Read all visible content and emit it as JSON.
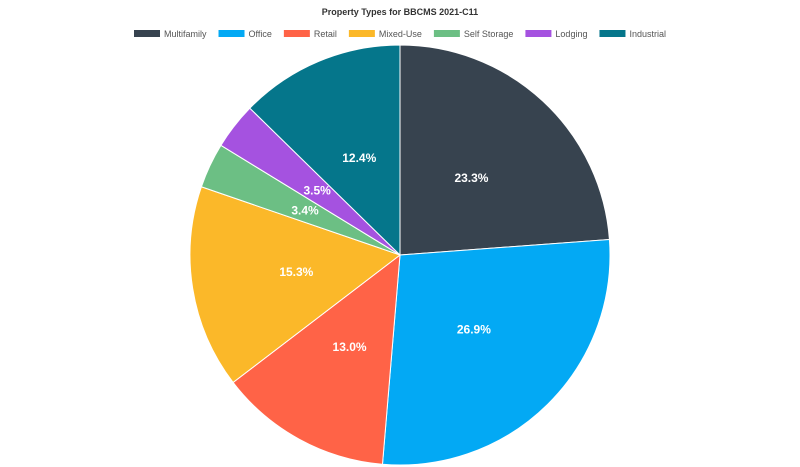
{
  "chart_data": {
    "type": "pie",
    "title": "Property Types for BBCMS 2021-C11",
    "legend_position": "top",
    "slices": [
      {
        "label": "Multifamily",
        "value": 23.3,
        "display": "23.3%",
        "color": "#37434f"
      },
      {
        "label": "Office",
        "value": 26.9,
        "display": "26.9%",
        "color": "#03a9f4"
      },
      {
        "label": "Retail",
        "value": 13.0,
        "display": "13.0%",
        "color": "#ff6347"
      },
      {
        "label": "Mixed-Use",
        "value": 15.3,
        "display": "15.3%",
        "color": "#fbb829"
      },
      {
        "label": "Self Storage",
        "value": 3.4,
        "display": "3.4%",
        "color": "#6cbf84"
      },
      {
        "label": "Lodging",
        "value": 3.5,
        "display": "3.5%",
        "color": "#a552e0"
      },
      {
        "label": "Industrial",
        "value": 12.4,
        "display": "12.4%",
        "color": "#05768b"
      }
    ]
  }
}
